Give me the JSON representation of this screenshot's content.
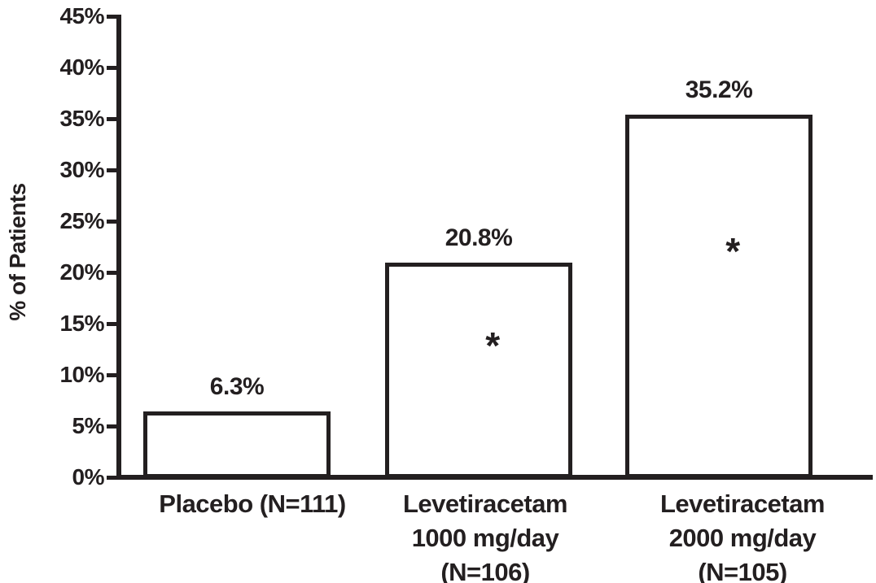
{
  "chart_data": {
    "type": "bar",
    "title": "",
    "xlabel": "",
    "ylabel": "% of Patients",
    "ylim": [
      0,
      45
    ],
    "ytick_step": 5,
    "ytick_labels": [
      "0%",
      "5%",
      "10%",
      "15%",
      "20%",
      "25%",
      "30%",
      "35%",
      "40%",
      "45%"
    ],
    "grid": false,
    "legend": null,
    "categories": [
      [
        "Placebo (N=111)"
      ],
      [
        "Levetiracetam",
        "1000 mg/day",
        "(N=106)"
      ],
      [
        "Levetiracetam",
        "2000 mg/day",
        "(N=105)"
      ]
    ],
    "values": [
      6.3,
      20.8,
      35.2
    ],
    "value_labels": [
      "6.3%",
      "20.8%",
      "35.2%"
    ],
    "significant": [
      false,
      true,
      true
    ],
    "significance_symbol": "*",
    "colors": {
      "background": "#ffffff",
      "text": "#231f20",
      "axis": "#231f20",
      "bar_fill": "#ffffff",
      "bar_border": "#231f20"
    }
  }
}
